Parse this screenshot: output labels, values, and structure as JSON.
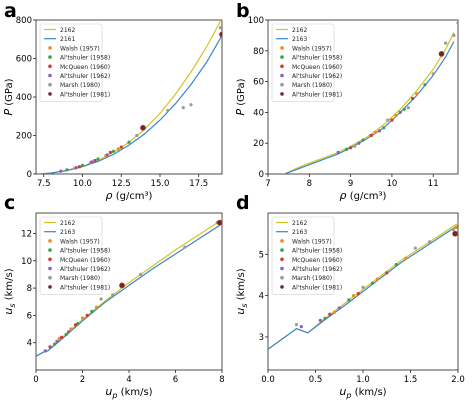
{
  "chart_data": [
    {
      "panel": "a",
      "type": "scatter",
      "title": "",
      "xlabel": "ρ (g/cm³)",
      "ylabel": "P (GPa)",
      "xlim": [
        7.0,
        19.0
      ],
      "ylim": [
        0,
        800
      ],
      "xticks": [
        7.5,
        10.0,
        12.5,
        15.0,
        17.5
      ],
      "xtick_labels": [
        "7.5",
        "10.0",
        "12.5",
        "15.0",
        "17.5"
      ],
      "yticks": [
        0,
        200,
        400,
        600,
        800
      ],
      "ytick_labels": [
        "0",
        "200",
        "400",
        "600",
        "800"
      ],
      "grid": false,
      "legend_position": "top-left",
      "lines": [
        {
          "name": "2162",
          "color": "#d4c425",
          "x": [
            7.3,
            8,
            9,
            10,
            11,
            12,
            13,
            14,
            15,
            16,
            17,
            18,
            19
          ],
          "y": [
            0,
            5,
            19,
            40,
            70,
            112,
            165,
            232,
            315,
            415,
            530,
            660,
            810
          ]
        },
        {
          "name": "2161",
          "color": "#3a86c8",
          "x": [
            7.3,
            8,
            9,
            10,
            11,
            12,
            13,
            14,
            15,
            16,
            17,
            18,
            19
          ],
          "y": [
            0,
            5,
            18,
            38,
            65,
            102,
            150,
            208,
            280,
            365,
            465,
            580,
            720
          ]
        }
      ],
      "series": [
        {
          "name": "Walsh (1957)",
          "color": "#f08a1c",
          "points": [
            [
              9.5,
              30
            ],
            [
              10.5,
              58
            ],
            [
              11.5,
              95
            ],
            [
              12.3,
              130
            ]
          ]
        },
        {
          "name": "Al'tshuler (1958)",
          "color": "#3aa34a",
          "points": [
            [
              9.0,
              22
            ],
            [
              10.0,
              45
            ],
            [
              11.0,
              78
            ],
            [
              12.0,
              118
            ],
            [
              13.0,
              165
            ]
          ]
        },
        {
          "name": "McQueen (1960)",
          "color": "#d03a3a",
          "points": [
            [
              9.8,
              38
            ],
            [
              10.8,
              70
            ],
            [
              11.8,
              112
            ],
            [
              12.5,
              140
            ]
          ]
        },
        {
          "name": "Al'tshuler (1962)",
          "color": "#8b5ec0",
          "points": [
            [
              8.6,
              15
            ],
            [
              9.6,
              33
            ],
            [
              10.6,
              63
            ],
            [
              11.6,
              100
            ]
          ]
        },
        {
          "name": "Marsh (1980)",
          "color": "#9a9a9a",
          "points": [
            [
              13.5,
              200
            ],
            [
              15.5,
              330
            ],
            [
              16.5,
              345
            ],
            [
              17.0,
              360
            ],
            [
              18.9,
              760
            ]
          ]
        },
        {
          "name": "Al'tshuler (1981)",
          "color": "#6a2a2a",
          "points": [
            [
              13.9,
              240
            ],
            [
              19.0,
              725
            ]
          ]
        }
      ]
    },
    {
      "panel": "b",
      "type": "scatter",
      "title": "",
      "xlabel": "ρ (g/cm³)",
      "ylabel": "P (GPa)",
      "xlim": [
        7.0,
        11.6
      ],
      "ylim": [
        0,
        100
      ],
      "xticks": [
        7,
        8,
        9,
        10,
        11
      ],
      "xtick_labels": [
        "7",
        "8",
        "9",
        "10",
        "11"
      ],
      "yticks": [
        0,
        20,
        40,
        60,
        80,
        100
      ],
      "ytick_labels": [
        "0",
        "20",
        "40",
        "60",
        "80",
        "100"
      ],
      "grid": false,
      "legend_position": "top-left",
      "lines": [
        {
          "name": "2162",
          "color": "#d4c425",
          "x": [
            7.4,
            7.8,
            8.3,
            8.7,
            9.0,
            9.4,
            9.8,
            10.2,
            10.6,
            11.0,
            11.3,
            11.5
          ],
          "y": [
            0,
            5,
            10,
            14,
            18,
            24,
            32,
            42,
            54,
            68,
            81,
            92
          ]
        },
        {
          "name": "2163",
          "color": "#3a86c8",
          "x": [
            7.4,
            7.8,
            8.3,
            8.7,
            9.0,
            9.4,
            9.8,
            10.2,
            10.6,
            11.0,
            11.3,
            11.5
          ],
          "y": [
            0,
            4,
            9,
            13,
            17,
            23,
            30,
            40,
            51,
            64,
            76,
            86
          ]
        }
      ],
      "series": [
        {
          "name": "Walsh (1957)",
          "color": "#f08a1c",
          "points": [
            [
              9.1,
              18
            ],
            [
              9.6,
              27
            ],
            [
              10.1,
              38
            ],
            [
              10.6,
              52
            ],
            [
              11.2,
              78
            ]
          ]
        },
        {
          "name": "Al'tshuler (1958)",
          "color": "#3aa34a",
          "points": [
            [
              8.9,
              16
            ],
            [
              9.3,
              22
            ],
            [
              9.8,
              30
            ],
            [
              10.3,
              42
            ],
            [
              10.8,
              58
            ]
          ]
        },
        {
          "name": "McQueen (1960)",
          "color": "#d03a3a",
          "points": [
            [
              9.0,
              17
            ],
            [
              9.5,
              25
            ],
            [
              10.0,
              35
            ],
            [
              10.5,
              49
            ]
          ]
        },
        {
          "name": "Al'tshuler (1962)",
          "color": "#8b5ec0",
          "points": [
            [
              8.7,
              14
            ],
            [
              9.2,
              20
            ],
            [
              9.7,
              28
            ],
            [
              10.2,
              40
            ]
          ]
        },
        {
          "name": "Marsh (1980)",
          "color": "#9a9a9a",
          "points": [
            [
              9.9,
              35
            ],
            [
              10.4,
              43
            ],
            [
              11.0,
              65
            ],
            [
              11.3,
              85
            ],
            [
              11.5,
              90
            ],
            [
              11.6,
              98
            ]
          ]
        },
        {
          "name": "Al'tshuler (1981)",
          "color": "#6a2a2a",
          "points": [
            [
              11.2,
              78
            ]
          ]
        }
      ]
    },
    {
      "panel": "c",
      "type": "scatter",
      "title": "",
      "xlabel": "u_p (km/s)",
      "ylabel": "u_s (km/s)",
      "xlim": [
        0,
        8
      ],
      "ylim": [
        2,
        13.5
      ],
      "xticks": [
        0,
        2,
        4,
        6,
        8
      ],
      "xtick_labels": [
        "0",
        "2",
        "4",
        "6",
        "8"
      ],
      "yticks": [
        4,
        6,
        8,
        10,
        12
      ],
      "ytick_labels": [
        "4",
        "6",
        "8",
        "10",
        "12"
      ],
      "grid": false,
      "legend_position": "top-left",
      "lines": [
        {
          "name": "2162",
          "color": "#d4c425",
          "x": [
            0,
            0.3,
            0.5,
            1,
            2,
            3,
            4,
            5,
            6,
            7,
            8
          ],
          "y": [
            3.0,
            3.3,
            3.4,
            4.2,
            5.7,
            7.1,
            8.4,
            9.6,
            10.8,
            11.9,
            13.0
          ]
        },
        {
          "name": "2163",
          "color": "#3a86c8",
          "x": [
            0,
            0.3,
            0.5,
            1,
            2,
            3,
            4,
            5,
            6,
            7,
            8
          ],
          "y": [
            3.0,
            3.3,
            3.4,
            4.1,
            5.6,
            7.0,
            8.2,
            9.4,
            10.5,
            11.6,
            12.7
          ]
        }
      ],
      "series": [
        {
          "name": "Walsh (1957)",
          "color": "#f08a1c",
          "points": [
            [
              1.0,
              4.3
            ],
            [
              1.5,
              5.0
            ],
            [
              2.0,
              5.8
            ],
            [
              2.6,
              6.6
            ]
          ]
        },
        {
          "name": "Al'tshuler (1958)",
          "color": "#3aa34a",
          "points": [
            [
              0.8,
              3.9
            ],
            [
              1.3,
              4.6
            ],
            [
              1.8,
              5.4
            ],
            [
              2.4,
              6.3
            ]
          ]
        },
        {
          "name": "McQueen (1960)",
          "color": "#d03a3a",
          "points": [
            [
              0.6,
              3.7
            ],
            [
              1.1,
              4.4
            ],
            [
              1.7,
              5.3
            ],
            [
              2.2,
              6.0
            ]
          ]
        },
        {
          "name": "Al'tshuler (1962)",
          "color": "#8b5ec0",
          "points": [
            [
              0.4,
              3.4
            ],
            [
              0.9,
              4.1
            ],
            [
              1.4,
              4.8
            ]
          ]
        },
        {
          "name": "Marsh (1980)",
          "color": "#9a9a9a",
          "points": [
            [
              2.8,
              7.2
            ],
            [
              3.3,
              7.5
            ],
            [
              4.5,
              9.0
            ],
            [
              6.4,
              11.0
            ],
            [
              7.8,
              12.8
            ]
          ]
        },
        {
          "name": "Al'tshuler (1981)",
          "color": "#6a2a2a",
          "points": [
            [
              3.7,
              8.2
            ],
            [
              7.9,
              12.8
            ]
          ]
        }
      ]
    },
    {
      "panel": "d",
      "type": "scatter",
      "title": "",
      "xlabel": "u_p (km/s)",
      "ylabel": "u_s (km/s)",
      "xlim": [
        0,
        2.0
      ],
      "ylim": [
        2.2,
        6.0
      ],
      "xticks": [
        0.0,
        0.5,
        1.0,
        1.5,
        2.0
      ],
      "xtick_labels": [
        "0.0",
        "0.5",
        "1.0",
        "1.5",
        "2.0"
      ],
      "yticks": [
        3,
        4,
        5
      ],
      "ytick_labels": [
        "3",
        "4",
        "5"
      ],
      "grid": false,
      "legend_position": "top-left",
      "lines": [
        {
          "name": "2162",
          "color": "#d4c425",
          "x": [
            0,
            0.3,
            0.42,
            0.6,
            0.8,
            1.0,
            1.2,
            1.4,
            1.6,
            1.8,
            2.0
          ],
          "y": [
            2.7,
            3.2,
            3.1,
            3.45,
            3.8,
            4.15,
            4.5,
            4.85,
            5.15,
            5.45,
            5.75
          ]
        },
        {
          "name": "2163",
          "color": "#3a86c8",
          "x": [
            0,
            0.3,
            0.42,
            0.6,
            0.8,
            1.0,
            1.2,
            1.4,
            1.6,
            1.8,
            2.0
          ],
          "y": [
            2.7,
            3.2,
            3.1,
            3.42,
            3.75,
            4.1,
            4.45,
            4.8,
            5.1,
            5.4,
            5.7
          ]
        }
      ],
      "series": [
        {
          "name": "Walsh (1957)",
          "color": "#f08a1c",
          "points": [
            [
              0.7,
              3.6
            ],
            [
              0.9,
              4.0
            ],
            [
              1.15,
              4.4
            ],
            [
              1.45,
              4.9
            ],
            [
              1.98,
              5.65
            ]
          ]
        },
        {
          "name": "Al'tshuler (1958)",
          "color": "#3aa34a",
          "points": [
            [
              0.6,
              3.45
            ],
            [
              0.85,
              3.9
            ],
            [
              1.1,
              4.3
            ],
            [
              1.35,
              4.75
            ]
          ]
        },
        {
          "name": "McQueen (1960)",
          "color": "#d03a3a",
          "points": [
            [
              0.65,
              3.55
            ],
            [
              0.95,
              4.05
            ],
            [
              1.25,
              4.55
            ]
          ]
        },
        {
          "name": "Al'tshuler (1962)",
          "color": "#8b5ec0",
          "points": [
            [
              0.35,
              3.25
            ],
            [
              0.55,
              3.4
            ],
            [
              0.75,
              3.7
            ]
          ]
        },
        {
          "name": "Marsh (1980)",
          "color": "#9a9a9a",
          "points": [
            [
              0.3,
              3.3
            ],
            [
              1.0,
              4.2
            ],
            [
              1.55,
              5.15
            ],
            [
              1.7,
              5.3
            ],
            [
              1.95,
              5.6
            ]
          ]
        },
        {
          "name": "Al'tshuler (1981)",
          "color": "#6a2a2a",
          "points": [
            [
              1.97,
              5.5
            ]
          ]
        }
      ]
    }
  ]
}
